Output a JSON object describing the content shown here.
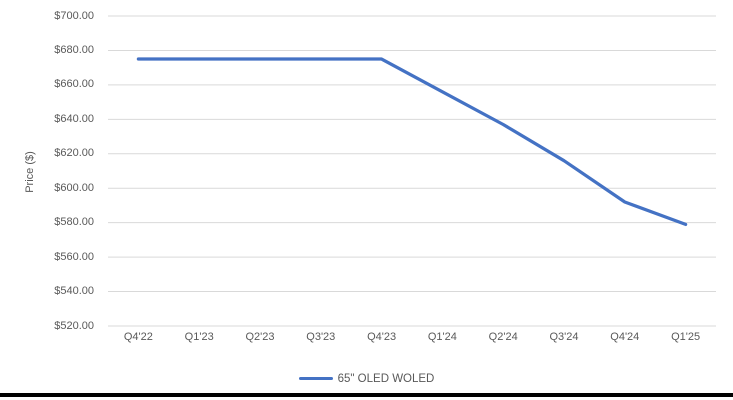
{
  "colors": {
    "line": "#4472C4",
    "gridline": "#D9D9D9",
    "axis_line": "#D9D9D9",
    "text": "#595959",
    "bottom_rule": "#000000",
    "background": "#FFFFFF"
  },
  "chart_data": {
    "type": "line",
    "categories": [
      "Q4'22",
      "Q1'23",
      "Q2'23",
      "Q3'23",
      "Q4'23",
      "Q1'24",
      "Q2'24",
      "Q3'24",
      "Q4'24",
      "Q1'25"
    ],
    "series": [
      {
        "name": "65\" OLED WOLED",
        "color": "#4472C4",
        "values": [
          675,
          675,
          675,
          675,
          675,
          656,
          637,
          616,
          592,
          579
        ]
      }
    ],
    "xlabel": "",
    "ylabel": "Price ($)",
    "ylim": [
      520,
      700
    ],
    "y_tick_step": 20,
    "y_ticks": [
      {
        "value": 520,
        "label": "$520.00"
      },
      {
        "value": 540,
        "label": "$540.00"
      },
      {
        "value": 560,
        "label": "$560.00"
      },
      {
        "value": 580,
        "label": "$580.00"
      },
      {
        "value": 600,
        "label": "$600.00"
      },
      {
        "value": 620,
        "label": "$620.00"
      },
      {
        "value": 640,
        "label": "$640.00"
      },
      {
        "value": 660,
        "label": "$660.00"
      },
      {
        "value": 680,
        "label": "$680.00"
      },
      {
        "value": 700,
        "label": "$700.00"
      }
    ],
    "grid": true,
    "legend_position": "bottom"
  }
}
